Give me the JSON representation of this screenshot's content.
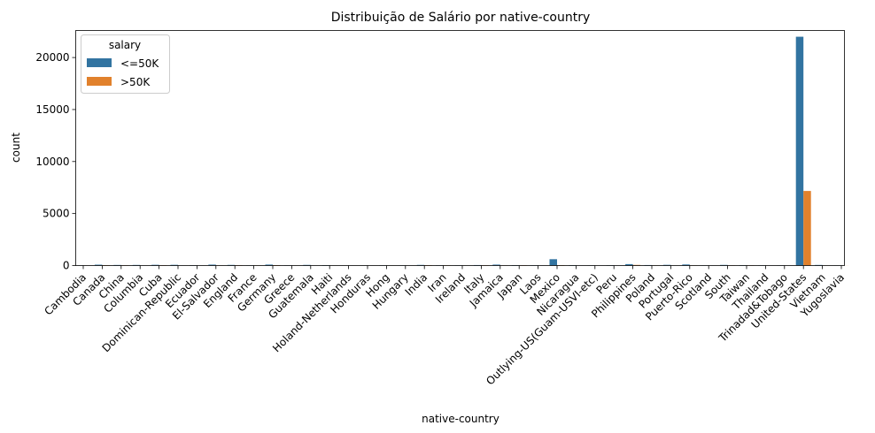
{
  "chart_data": {
    "type": "bar",
    "title": "Distribuição de Salário por native-country",
    "xlabel": "native-country",
    "ylabel": "count",
    "ylim": [
      0,
      22600
    ],
    "yticks": [
      0,
      5000,
      10000,
      15000,
      20000
    ],
    "grid": false,
    "legend": {
      "title": "salary",
      "placement": "top-left"
    },
    "categories": [
      "Cambodia",
      "Canada",
      "China",
      "Columbia",
      "Cuba",
      "Dominican-Republic",
      "Ecuador",
      "El-Salvador",
      "England",
      "France",
      "Germany",
      "Greece",
      "Guatemala",
      "Haiti",
      "Holand-Netherlands",
      "Honduras",
      "Hong",
      "Hungary",
      "India",
      "Iran",
      "Ireland",
      "Italy",
      "Jamaica",
      "Japan",
      "Laos",
      "Mexico",
      "Nicaragua",
      "Outlying-US(Guam-USVI-etc)",
      "Peru",
      "Philippines",
      "Poland",
      "Portugal",
      "Puerto-Rico",
      "Scotland",
      "South",
      "Taiwan",
      "Thailand",
      "Trinadad&Tobago",
      "United-States",
      "Vietnam",
      "Yugoslavia"
    ],
    "series": [
      {
        "name": "<=50K",
        "color": "#3274a1",
        "values": [
          12,
          82,
          55,
          57,
          70,
          68,
          24,
          88,
          60,
          17,
          93,
          20,
          61,
          40,
          1,
          12,
          14,
          10,
          60,
          25,
          19,
          48,
          89,
          38,
          16,
          610,
          31,
          14,
          29,
          137,
          48,
          67,
          102,
          9,
          60,
          31,
          15,
          17,
          21999,
          57,
          10
        ]
      },
      {
        "name": ">50K",
        "color": "#e1812c",
        "values": [
          7,
          39,
          20,
          2,
          25,
          2,
          4,
          9,
          30,
          12,
          44,
          8,
          3,
          4,
          0,
          1,
          6,
          3,
          40,
          18,
          5,
          25,
          10,
          24,
          2,
          33,
          2,
          0,
          2,
          61,
          12,
          4,
          12,
          3,
          16,
          20,
          3,
          2,
          7171,
          5,
          6
        ]
      }
    ]
  }
}
